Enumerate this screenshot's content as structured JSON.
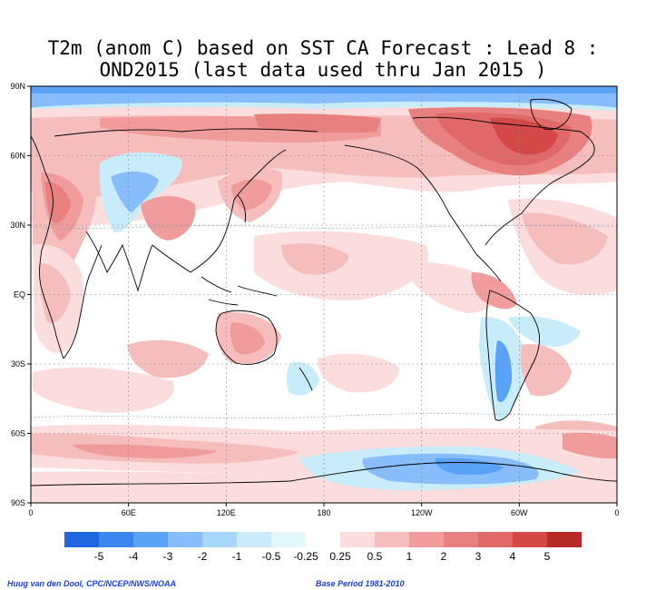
{
  "title": {
    "line1": "T2m (anom C) based on SST CA Forecast : Lead 8 :",
    "line2": "OND2015 (last data used thru Jan 2015 )"
  },
  "map": {
    "projection": "cylindrical equidistant",
    "lon_labels": [
      "0",
      "60E",
      "120E",
      "180",
      "120W",
      "60W",
      "0"
    ],
    "lat_labels": [
      "90N",
      "60N",
      "30N",
      "EQ",
      "30S",
      "60S",
      "90S"
    ],
    "grid": "dotted",
    "coastlines": true
  },
  "legend": {
    "colors": [
      "#1f66e0",
      "#3b86ef",
      "#5aa2f5",
      "#86bdfa",
      "#a9d6fb",
      "#c8ecfa",
      "#e2f8fb",
      "#ffffff",
      "#fbdddd",
      "#f6bdbd",
      "#f09c9c",
      "#e98080",
      "#e06868",
      "#d44848",
      "#b62a2a"
    ],
    "labels": [
      "-5",
      "-4",
      "-3",
      "-2",
      "-1",
      "-0.5",
      "-0.25",
      "0.25",
      "0.5",
      "1",
      "2",
      "3",
      "4",
      "5"
    ]
  },
  "footer": {
    "credit": "Huug van den Dool, CPC/NCEP/NWS/NOAA",
    "base_period": "Base Period 1981-2010"
  }
}
